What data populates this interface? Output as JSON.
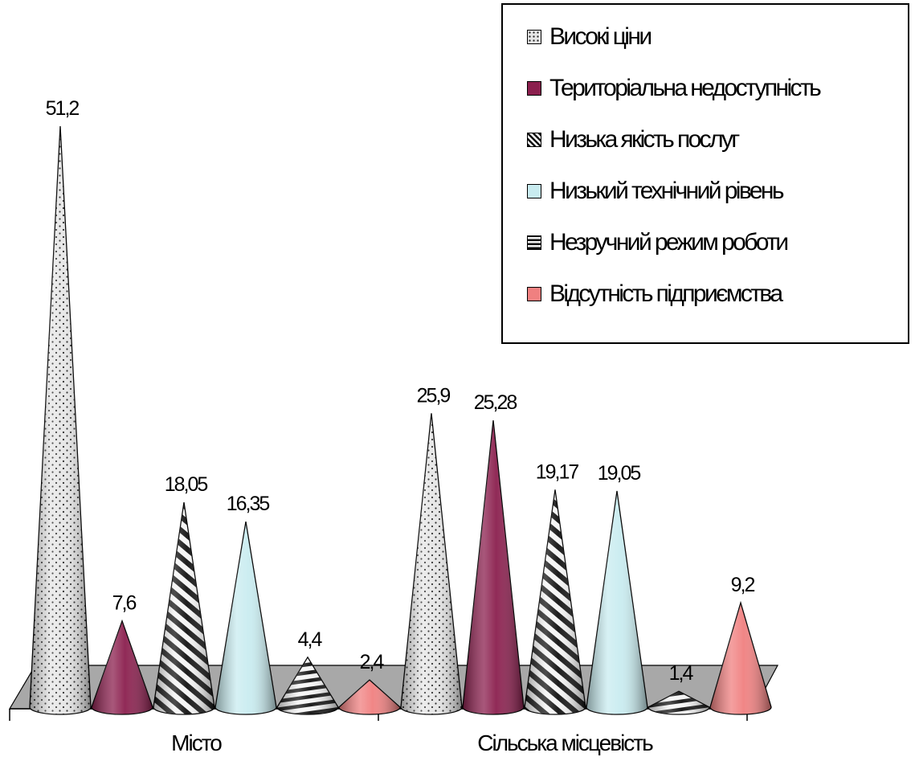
{
  "chart_data": {
    "type": "bar",
    "shape": "cone",
    "categories": [
      "Місто",
      "Сільська місцевість"
    ],
    "series": [
      {
        "name": "Високі ціни",
        "values": [
          51.2,
          25.9
        ],
        "labels": [
          "51,2",
          "25,9"
        ],
        "pattern": "dots",
        "color": "#e4e4e4"
      },
      {
        "name": "Територіальна недоступність",
        "values": [
          7.6,
          25.28
        ],
        "labels": [
          "7,6",
          "25,28"
        ],
        "pattern": "solid",
        "color": "#8b1f4e"
      },
      {
        "name": "Низька якість послуг",
        "values": [
          18.05,
          19.17
        ],
        "labels": [
          "18,05",
          "19,17"
        ],
        "pattern": "diagonal",
        "color": "#1a1a1a"
      },
      {
        "name": "Низький технічний рівень",
        "values": [
          16.35,
          19.05
        ],
        "labels": [
          "16,35",
          "19,05"
        ],
        "pattern": "solid",
        "color": "#c9ecf0"
      },
      {
        "name": "Незручний режим роботи",
        "values": [
          4.4,
          1.4
        ],
        "labels": [
          "4,4",
          "1,4"
        ],
        "pattern": "horizontal",
        "color": "#1a1a1a"
      },
      {
        "name": "Відсутність підприємства",
        "values": [
          2.4,
          9.2
        ],
        "labels": [
          "2,4",
          "9,2"
        ],
        "pattern": "solid",
        "color": "#f08080"
      }
    ],
    "ylim": [
      0,
      51.2
    ],
    "grid": false,
    "legend": "top-right"
  }
}
